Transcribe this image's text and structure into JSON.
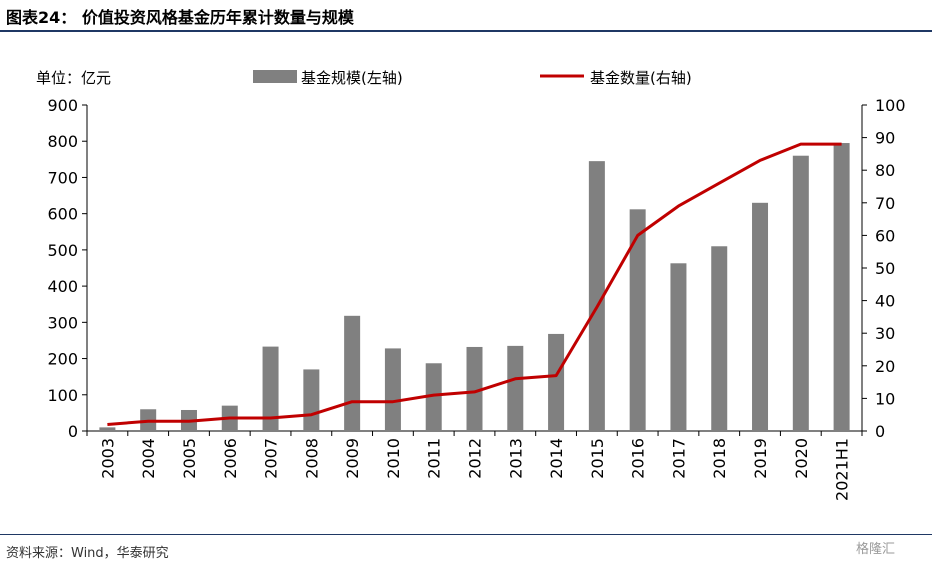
{
  "title": "图表24：  价值投资风格基金历年累计数量与规模",
  "source": "资料来源：Wind，华泰研究",
  "watermark": "格隆汇",
  "colors": {
    "bar": "#808080",
    "line": "#c00000",
    "rule": "#1f3864"
  },
  "chart_data": {
    "type": "bar",
    "unit_label": "单位：亿元",
    "categories": [
      "2003",
      "2004",
      "2005",
      "2006",
      "2007",
      "2008",
      "2009",
      "2010",
      "2011",
      "2012",
      "2013",
      "2014",
      "2015",
      "2016",
      "2017",
      "2018",
      "2019",
      "2020",
      "2021H1"
    ],
    "series": [
      {
        "name": "基金规模(左轴)",
        "type": "bar",
        "axis": "left",
        "values": [
          10,
          60,
          58,
          70,
          233,
          170,
          318,
          228,
          187,
          232,
          235,
          268,
          745,
          612,
          463,
          510,
          630,
          760,
          795
        ]
      },
      {
        "name": "基金数量(右轴)",
        "type": "line",
        "axis": "right",
        "values": [
          2,
          3,
          3,
          4,
          4,
          5,
          9,
          9,
          11,
          12,
          16,
          17,
          38,
          60,
          69,
          76,
          83,
          88,
          88
        ]
      }
    ],
    "left_axis": {
      "min": 0,
      "max": 900,
      "ticks": [
        "0",
        "100",
        "200",
        "300",
        "400",
        "500",
        "600",
        "700",
        "800",
        "900"
      ]
    },
    "right_axis": {
      "min": 0,
      "max": 100,
      "ticks": [
        "0",
        "10",
        "20",
        "30",
        "40",
        "50",
        "60",
        "70",
        "80",
        "90",
        "100"
      ]
    },
    "legend_position": "top",
    "grid": false
  }
}
